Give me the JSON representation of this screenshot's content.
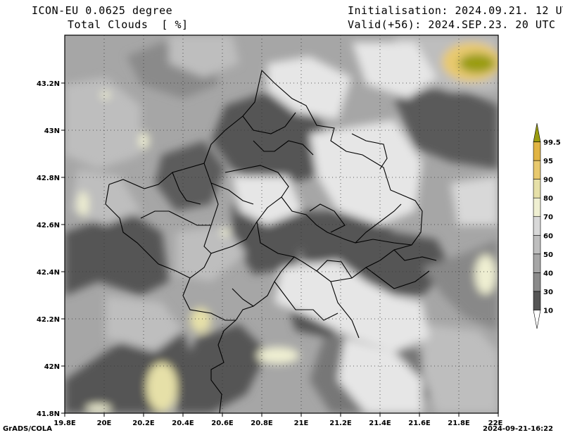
{
  "header": {
    "model": "ICON-EU 0.0625 degree",
    "field": "Total Clouds  [ %]",
    "init": "Initialisation: 2024.09.21. 12 UTC",
    "valid": "Valid(+56): 2024.SEP.23. 20 UTC"
  },
  "axes": {
    "x_ticks": [
      "19.8E",
      "20E",
      "20.2E",
      "20.4E",
      "20.6E",
      "20.8E",
      "21E",
      "21.2E",
      "21.4E",
      "21.6E",
      "21.8E",
      "22E"
    ],
    "y_ticks": [
      "43.2N",
      "43N",
      "42.8N",
      "42.6N",
      "42.4N",
      "42.2N",
      "42N",
      "41.8N"
    ]
  },
  "colorbar": {
    "labels": [
      "10",
      "30",
      "40",
      "50",
      "60",
      "70",
      "80",
      "90",
      "95",
      "99.5"
    ],
    "colors": [
      "#ffffff",
      "#555555",
      "#8a8a8a",
      "#a6a6a6",
      "#bebebe",
      "#d8d8d8",
      "#efefd2",
      "#e6e0a8",
      "#e8c96e",
      "#e1b443",
      "#9a9c10"
    ]
  },
  "footer": {
    "left": "GrADS/COLA",
    "right": "2024-09-21-16:22"
  }
}
